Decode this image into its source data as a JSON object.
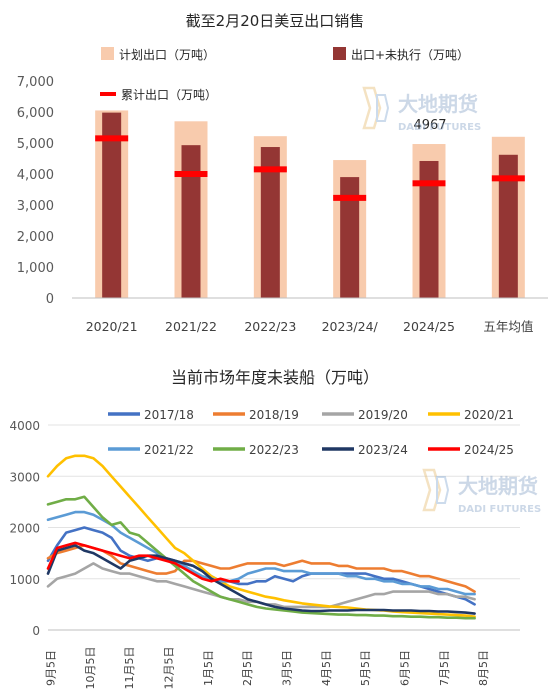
{
  "chart_data": [
    {
      "type": "bar",
      "title": "截至2月20日美豆出口销售",
      "categories": [
        "2020/21",
        "2021/22",
        "2022/23",
        "2023/24/",
        "2024/25",
        "五年均值"
      ],
      "series": [
        {
          "name": "计划出口（万吨）",
          "kind": "bar-wide",
          "color": "#f8cbad",
          "values": [
            6050,
            5700,
            5220,
            4450,
            4967,
            5200
          ]
        },
        {
          "name": "出口+未执行（万吨）",
          "kind": "bar-narrow",
          "color": "#943634",
          "values": [
            5980,
            4930,
            4870,
            3900,
            4420,
            4620
          ]
        },
        {
          "name": "累计出口（万吨）",
          "kind": "marker",
          "color": "#ff0000",
          "values": [
            5150,
            4000,
            4150,
            3230,
            3700,
            3860
          ]
        }
      ],
      "ylim": [
        0,
        7000
      ],
      "yticks": [
        "0",
        "1,000",
        "2,000",
        "3,000",
        "4,000",
        "5,000",
        "6,000",
        "7,000"
      ],
      "annotation": "4967",
      "grid": false,
      "legend": "top"
    },
    {
      "type": "line",
      "title": "当前市场年度未装船（万吨）",
      "xticks": [
        "9月5日",
        "10月5日",
        "11月5日",
        "12月5日",
        "1月5日",
        "2月5日",
        "3月5日",
        "4月5日",
        "5月5日",
        "6月5日",
        "7月5日",
        "8月5日"
      ],
      "ylim": [
        0,
        4000
      ],
      "yticks": [
        "0",
        "1000",
        "2000",
        "3000",
        "4000"
      ],
      "grid": true,
      "legend": "top",
      "series": [
        {
          "name": "2017/18",
          "color": "#4472c4",
          "week": [
            0,
            1,
            2,
            3,
            4,
            5,
            6,
            7,
            8,
            9,
            10,
            11,
            12,
            13,
            14,
            15,
            16,
            17,
            18,
            19,
            20,
            21,
            22,
            23,
            24,
            25,
            26,
            27,
            28,
            29,
            30,
            31,
            32,
            33,
            34,
            35,
            36,
            37,
            38,
            39,
            40,
            41,
            42,
            43,
            44,
            45,
            46,
            47
          ],
          "values": [
            1350,
            1650,
            1900,
            1950,
            2000,
            1950,
            1900,
            1800,
            1550,
            1450,
            1400,
            1350,
            1400,
            1400,
            1350,
            1300,
            1250,
            1150,
            1050,
            950,
            950,
            900,
            900,
            950,
            950,
            1050,
            1000,
            950,
            1050,
            1100,
            1100,
            1100,
            1100,
            1100,
            1100,
            1100,
            1050,
            1000,
            1000,
            950,
            900,
            850,
            800,
            750,
            700,
            650,
            600,
            500
          ]
        },
        {
          "name": "2018/19",
          "color": "#ed7d31",
          "week": [
            0,
            1,
            2,
            3,
            4,
            5,
            6,
            7,
            8,
            9,
            10,
            11,
            12,
            13,
            14,
            15,
            16,
            17,
            18,
            19,
            20,
            21,
            22,
            23,
            24,
            25,
            26,
            27,
            28,
            29,
            30,
            31,
            32,
            33,
            34,
            35,
            36,
            37,
            38,
            39,
            40,
            41,
            42,
            43,
            44,
            45,
            46,
            47
          ],
          "values": [
            1400,
            1500,
            1550,
            1600,
            1650,
            1600,
            1550,
            1450,
            1300,
            1250,
            1200,
            1150,
            1100,
            1100,
            1150,
            1350,
            1350,
            1300,
            1250,
            1200,
            1200,
            1250,
            1300,
            1300,
            1300,
            1300,
            1250,
            1300,
            1350,
            1300,
            1300,
            1300,
            1250,
            1250,
            1200,
            1200,
            1200,
            1200,
            1150,
            1150,
            1100,
            1050,
            1050,
            1000,
            950,
            900,
            850,
            750
          ]
        },
        {
          "name": "2019/20",
          "color": "#a5a5a5",
          "week": [
            0,
            1,
            2,
            3,
            4,
            5,
            6,
            7,
            8,
            9,
            10,
            11,
            12,
            13,
            14,
            15,
            16,
            17,
            18,
            19,
            20,
            21,
            22,
            23,
            24,
            25,
            26,
            27,
            28,
            29,
            30,
            31,
            32,
            33,
            34,
            35,
            36,
            37,
            38,
            39,
            40,
            41,
            42,
            43,
            44,
            45,
            46,
            47
          ],
          "values": [
            850,
            1000,
            1050,
            1100,
            1200,
            1300,
            1200,
            1150,
            1100,
            1100,
            1050,
            1000,
            950,
            950,
            900,
            850,
            800,
            750,
            700,
            650,
            600,
            600,
            550,
            550,
            500,
            500,
            450,
            450,
            450,
            450,
            450,
            450,
            500,
            550,
            600,
            650,
            700,
            700,
            750,
            750,
            750,
            750,
            750,
            700,
            700,
            650,
            650,
            600
          ]
        },
        {
          "name": "2020/21",
          "color": "#ffc000",
          "week": [
            0,
            1,
            2,
            3,
            4,
            5,
            6,
            7,
            8,
            9,
            10,
            11,
            12,
            13,
            14,
            15,
            16,
            17,
            18,
            19,
            20,
            21,
            22,
            23,
            24,
            25,
            26,
            27,
            28,
            29,
            30,
            31,
            32,
            33,
            34,
            35,
            36,
            37,
            38,
            39,
            40,
            41,
            42,
            43,
            44,
            45,
            46,
            47
          ],
          "values": [
            3000,
            3200,
            3350,
            3400,
            3400,
            3350,
            3200,
            3000,
            2800,
            2600,
            2400,
            2200,
            2000,
            1800,
            1600,
            1500,
            1350,
            1200,
            1050,
            950,
            850,
            800,
            750,
            700,
            650,
            620,
            580,
            550,
            520,
            500,
            480,
            460,
            450,
            440,
            420,
            400,
            390,
            380,
            360,
            350,
            340,
            330,
            320,
            310,
            300,
            290,
            280,
            260
          ]
        },
        {
          "name": "2021/22",
          "color": "#5b9bd5",
          "week": [
            0,
            1,
            2,
            3,
            4,
            5,
            6,
            7,
            8,
            9,
            10,
            11,
            12,
            13,
            14,
            15,
            16,
            17,
            18,
            19,
            20,
            21,
            22,
            23,
            24,
            25,
            26,
            27,
            28,
            29,
            30,
            31,
            32,
            33,
            34,
            35,
            36,
            37,
            38,
            39,
            40,
            41,
            42,
            43,
            44,
            45,
            46,
            47
          ],
          "values": [
            2150,
            2200,
            2250,
            2300,
            2300,
            2250,
            2150,
            2050,
            1900,
            1800,
            1700,
            1600,
            1500,
            1400,
            1350,
            1250,
            1150,
            1050,
            1000,
            950,
            950,
            1000,
            1100,
            1150,
            1200,
            1200,
            1150,
            1150,
            1150,
            1100,
            1100,
            1100,
            1100,
            1050,
            1050,
            1000,
            1000,
            950,
            950,
            900,
            900,
            850,
            850,
            800,
            800,
            750,
            700,
            700
          ]
        },
        {
          "name": "2022/23",
          "color": "#70ad47",
          "week": [
            0,
            1,
            2,
            3,
            4,
            5,
            6,
            7,
            8,
            9,
            10,
            11,
            12,
            13,
            14,
            15,
            16,
            17,
            18,
            19,
            20,
            21,
            22,
            23,
            24,
            25,
            26,
            27,
            28,
            29,
            30,
            31,
            32,
            33,
            34,
            35,
            36,
            37,
            38,
            39,
            40,
            41,
            42,
            43,
            44,
            45,
            46,
            47
          ],
          "values": [
            2450,
            2500,
            2550,
            2550,
            2600,
            2400,
            2200,
            2050,
            2100,
            1900,
            1850,
            1700,
            1550,
            1400,
            1250,
            1100,
            950,
            850,
            750,
            650,
            600,
            550,
            500,
            450,
            420,
            400,
            380,
            360,
            340,
            330,
            320,
            310,
            300,
            300,
            290,
            290,
            280,
            280,
            270,
            270,
            260,
            260,
            250,
            250,
            240,
            240,
            230,
            230
          ]
        },
        {
          "name": "2023/24",
          "color": "#203864",
          "week": [
            0,
            1,
            2,
            3,
            4,
            5,
            6,
            7,
            8,
            9,
            10,
            11,
            12,
            13,
            14,
            15,
            16,
            17,
            18,
            19,
            20,
            21,
            22,
            23,
            24,
            25,
            26,
            27,
            28,
            29,
            30,
            31,
            32,
            33,
            34,
            35,
            36,
            37,
            38,
            39,
            40,
            41,
            42,
            43,
            44,
            45,
            46,
            47
          ],
          "values": [
            1100,
            1550,
            1600,
            1650,
            1550,
            1500,
            1400,
            1300,
            1200,
            1350,
            1400,
            1450,
            1450,
            1400,
            1350,
            1300,
            1250,
            1150,
            1000,
            900,
            800,
            700,
            600,
            550,
            500,
            450,
            420,
            400,
            380,
            370,
            370,
            380,
            380,
            380,
            390,
            390,
            390,
            390,
            380,
            380,
            380,
            370,
            370,
            360,
            360,
            350,
            340,
            320
          ]
        },
        {
          "name": "2024/25",
          "color": "#ff0000",
          "week": [
            0,
            1,
            2,
            3,
            4,
            5,
            6,
            7,
            8,
            9,
            10,
            11,
            12,
            13,
            14,
            15,
            16,
            17,
            18,
            19,
            20,
            21
          ],
          "values": [
            1200,
            1600,
            1650,
            1700,
            1650,
            1600,
            1550,
            1500,
            1450,
            1400,
            1450,
            1450,
            1400,
            1350,
            1300,
            1200,
            1100,
            1000,
            950,
            1000,
            950,
            950
          ]
        }
      ]
    }
  ],
  "watermark": {
    "cn": "大地期货",
    "en": "DADI FUTURES"
  }
}
